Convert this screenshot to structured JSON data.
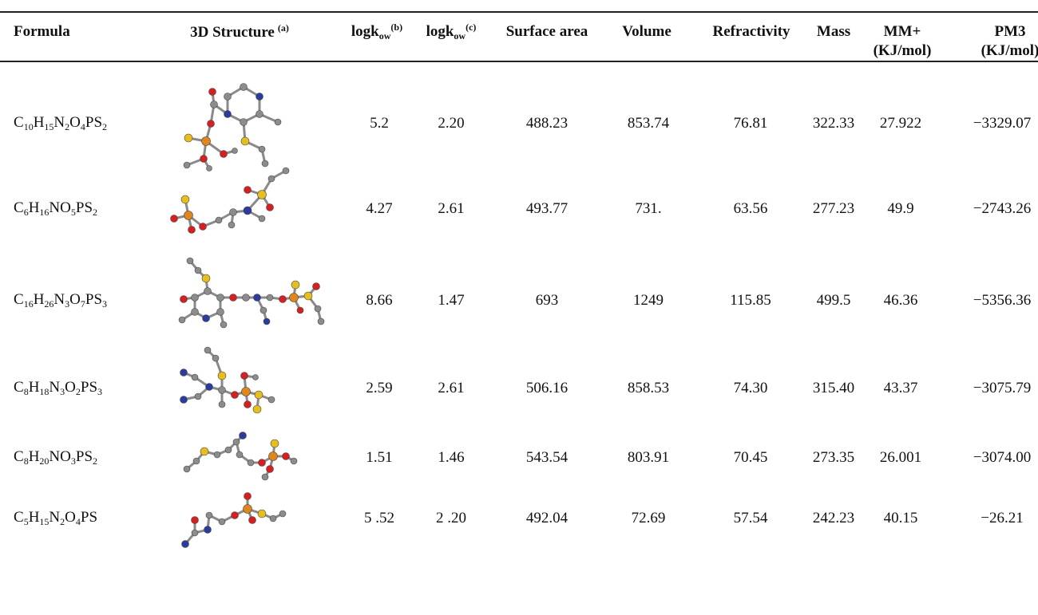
{
  "table": {
    "headers": [
      {
        "text": "Formula"
      },
      {
        "text": "3D Structure",
        "sup": "(a)"
      },
      {
        "text": "logk",
        "sub": "ow",
        "sup": "(b)"
      },
      {
        "text": "logk",
        "sub": "ow",
        "sup": "(c)"
      },
      {
        "text": "Surface area"
      },
      {
        "text": "Volume"
      },
      {
        "text": "Refractivity"
      },
      {
        "text": "Mass"
      },
      {
        "text": "MM+",
        "line2": "(KJ/mol)"
      },
      {
        "text": "PM3",
        "line2": "(KJ/mol)"
      }
    ],
    "rows": [
      [
        "C10H15N2O4PS2",
        "5.2",
        "2.20",
        "488.23",
        "853.74",
        "76.81",
        "322.33",
        "27.922",
        "−3329.07"
      ],
      [
        "C6H16NO5PS2",
        "4.27",
        "2.61",
        "493.77",
        "731.",
        "63.56",
        "277.23",
        "49.9",
        "−2743.26"
      ],
      [
        "C16H26N3O7PS3",
        "8.66",
        "1.47",
        "693",
        "1249",
        "115.85",
        "499.5",
        "46.36",
        "−5356.36"
      ],
      [
        "C8H18N3O2PS3",
        "2.59",
        "2.61",
        "506.16",
        "858.53",
        "74.30",
        "315.40",
        "43.37",
        "−3075.79"
      ],
      [
        "C8H20NO3PS2",
        "1.51",
        "1.46",
        "543.54",
        "803.91",
        "70.45",
        "273.35",
        "26.001",
        "−3074.00"
      ],
      [
        "C5H15N2O4PS",
        "5 .52",
        "2 .20",
        "492.04",
        "72.69",
        "57.54",
        "242.23",
        "40.15",
        "−26.21"
      ]
    ]
  }
}
